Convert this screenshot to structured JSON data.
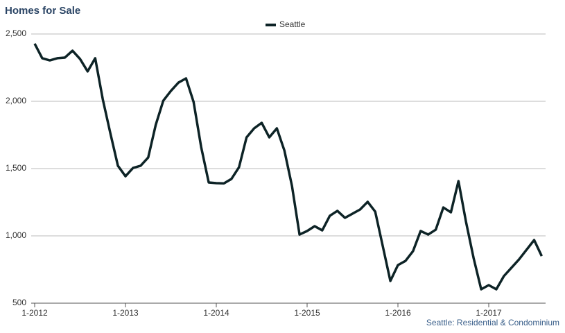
{
  "chart_data": {
    "type": "line",
    "title": "Homes for Sale",
    "footnote": "Seattle: Residential & Condominium",
    "categories": [
      "1-2012",
      null,
      null,
      null,
      null,
      null,
      null,
      null,
      null,
      null,
      null,
      null,
      "1-2013",
      null,
      null,
      null,
      null,
      null,
      null,
      null,
      null,
      null,
      null,
      null,
      "1-2014",
      null,
      null,
      null,
      null,
      null,
      null,
      null,
      null,
      null,
      null,
      null,
      "1-2015",
      null,
      null,
      null,
      null,
      null,
      null,
      null,
      null,
      null,
      null,
      null,
      "1-2016",
      null,
      null,
      null,
      null,
      null,
      null,
      null,
      null,
      null,
      null,
      null,
      "1-2017",
      null,
      null,
      null,
      null,
      null,
      null,
      null
    ],
    "series": [
      {
        "name": "Seattle",
        "color": "#0d2326",
        "values": [
          2428,
          2320,
          2304,
          2320,
          2325,
          2376,
          2314,
          2222,
          2320,
          2015,
          1763,
          1521,
          1443,
          1505,
          1521,
          1582,
          1825,
          2005,
          2077,
          2139,
          2170,
          1995,
          1660,
          1397,
          1392,
          1390,
          1423,
          1510,
          1732,
          1799,
          1840,
          1732,
          1799,
          1634,
          1371,
          1010,
          1036,
          1072,
          1041,
          1149,
          1186,
          1134,
          1165,
          1196,
          1253,
          1180,
          923,
          665,
          783,
          814,
          887,
          1036,
          1010,
          1046,
          1211,
          1175,
          1407,
          1103,
          835,
          603,
          634,
          603,
          701,
          763,
          825,
          897,
          969,
          850
        ]
      }
    ],
    "ylim": [
      500,
      2500
    ],
    "yticks": [
      {
        "value": 500,
        "label": "500"
      },
      {
        "value": 1000,
        "label": "1,000"
      },
      {
        "value": 1500,
        "label": "1,500"
      },
      {
        "value": 2000,
        "label": "2,000"
      },
      {
        "value": 2500,
        "label": "2,500"
      }
    ],
    "grid": true
  }
}
